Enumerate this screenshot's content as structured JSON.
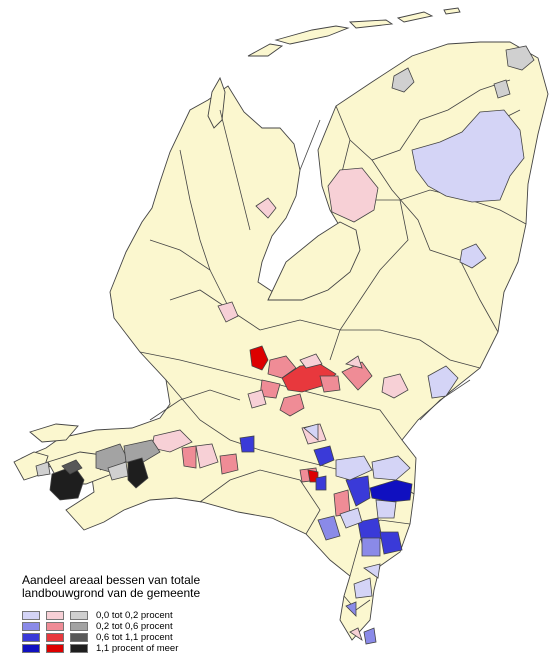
{
  "map": {
    "colors": {
      "water": "#ffffff",
      "land_default": "#fbf7cf",
      "border": "#444444"
    }
  },
  "legend": {
    "title_line1": "Aandeel areaal bessen van totale",
    "title_line2": "landbouwgrond van de gemeente",
    "rows": [
      {
        "label": "0,0 tot 0,2 procent",
        "colors": [
          "#d4d4f6",
          "#f7d0d6",
          "#d0d0d0"
        ]
      },
      {
        "label": "0,2 tot 0,6 procent",
        "colors": [
          "#8a8ae8",
          "#ef8c96",
          "#a3a3a3"
        ]
      },
      {
        "label": "0,6 tot 1,1 procent",
        "colors": [
          "#3a3ad8",
          "#e8383d",
          "#585858"
        ]
      },
      {
        "label": "1,1 procent of meer",
        "colors": [
          "#1010c0",
          "#dd0000",
          "#1e1e1e"
        ]
      }
    ]
  }
}
